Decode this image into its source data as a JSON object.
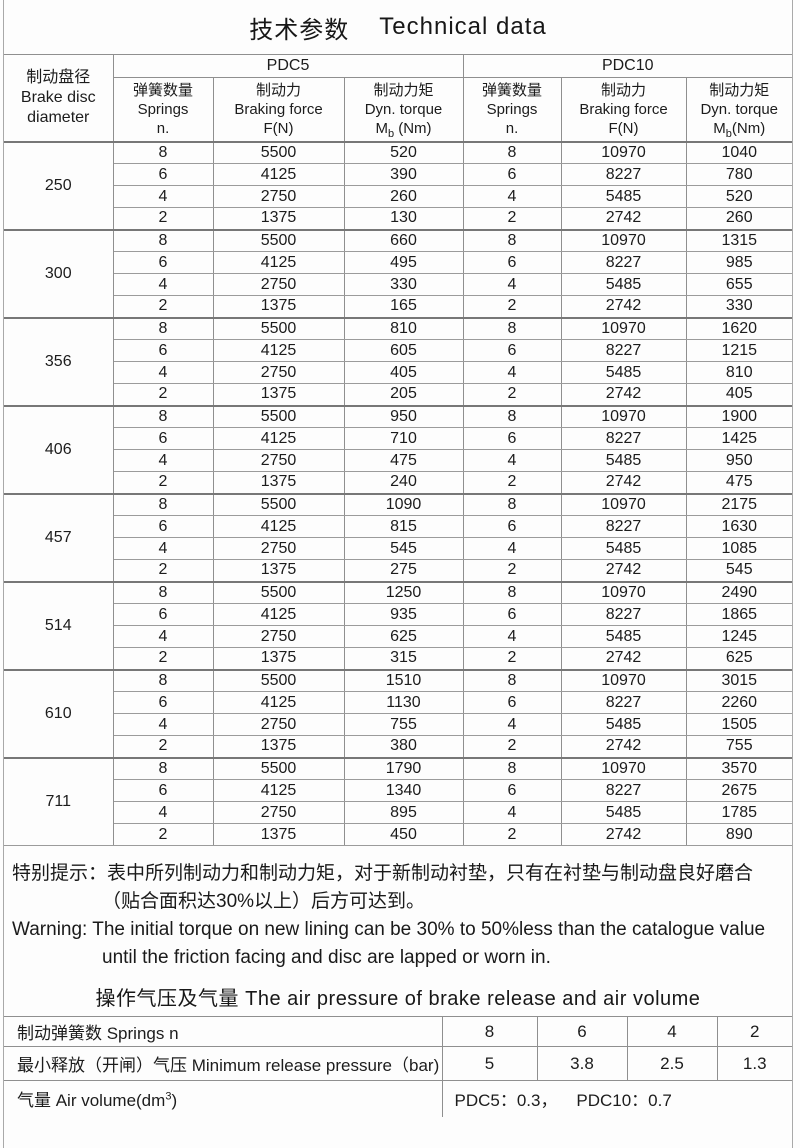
{
  "title": {
    "zh": "技术参数",
    "en": "Technical data"
  },
  "main_table": {
    "disc_header": [
      "制动盘径",
      "Brake disc",
      "diameter"
    ],
    "series": [
      {
        "name": "PDC5",
        "cols": [
          {
            "zh": "弹簧数量",
            "en": "Springs",
            "line3": "n."
          },
          {
            "zh": "制动力",
            "en": "Braking force",
            "line3": "F(N)"
          },
          {
            "zh": "制动力矩",
            "en": "Dyn. torque",
            "sym": "M",
            "sub": "b",
            "unit": " (Nm)"
          }
        ]
      },
      {
        "name": "PDC10",
        "cols": [
          {
            "zh": "弹簧数量",
            "en": "Springs",
            "line3": "n."
          },
          {
            "zh": "制动力",
            "en": "Braking force",
            "line3": "F(N)"
          },
          {
            "zh": "制动力矩",
            "en": "Dyn. torque",
            "sym": "M",
            "sub": "b",
            "unit": "(Nm)"
          }
        ]
      }
    ],
    "groups": [
      {
        "diameter": "250",
        "rows": [
          [
            "8",
            "5500",
            "520",
            "8",
            "10970",
            "1040"
          ],
          [
            "6",
            "4125",
            "390",
            "6",
            "8227",
            "780"
          ],
          [
            "4",
            "2750",
            "260",
            "4",
            "5485",
            "520"
          ],
          [
            "2",
            "1375",
            "130",
            "2",
            "2742",
            "260"
          ]
        ]
      },
      {
        "diameter": "300",
        "rows": [
          [
            "8",
            "5500",
            "660",
            "8",
            "10970",
            "1315"
          ],
          [
            "6",
            "4125",
            "495",
            "6",
            "8227",
            "985"
          ],
          [
            "4",
            "2750",
            "330",
            "4",
            "5485",
            "655"
          ],
          [
            "2",
            "1375",
            "165",
            "2",
            "2742",
            "330"
          ]
        ]
      },
      {
        "diameter": "356",
        "rows": [
          [
            "8",
            "5500",
            "810",
            "8",
            "10970",
            "1620"
          ],
          [
            "6",
            "4125",
            "605",
            "6",
            "8227",
            "1215"
          ],
          [
            "4",
            "2750",
            "405",
            "4",
            "5485",
            "810"
          ],
          [
            "2",
            "1375",
            "205",
            "2",
            "2742",
            "405"
          ]
        ]
      },
      {
        "diameter": "406",
        "rows": [
          [
            "8",
            "5500",
            "950",
            "8",
            "10970",
            "1900"
          ],
          [
            "6",
            "4125",
            "710",
            "6",
            "8227",
            "1425"
          ],
          [
            "4",
            "2750",
            "475",
            "4",
            "5485",
            "950"
          ],
          [
            "2",
            "1375",
            "240",
            "2",
            "2742",
            "475"
          ]
        ]
      },
      {
        "diameter": "457",
        "rows": [
          [
            "8",
            "5500",
            "1090",
            "8",
            "10970",
            "2175"
          ],
          [
            "6",
            "4125",
            "815",
            "6",
            "8227",
            "1630"
          ],
          [
            "4",
            "2750",
            "545",
            "4",
            "5485",
            "1085"
          ],
          [
            "2",
            "1375",
            "275",
            "2",
            "2742",
            "545"
          ]
        ]
      },
      {
        "diameter": "514",
        "rows": [
          [
            "8",
            "5500",
            "1250",
            "8",
            "10970",
            "2490"
          ],
          [
            "6",
            "4125",
            "935",
            "6",
            "8227",
            "1865"
          ],
          [
            "4",
            "2750",
            "625",
            "4",
            "5485",
            "1245"
          ],
          [
            "2",
            "1375",
            "315",
            "2",
            "2742",
            "625"
          ]
        ]
      },
      {
        "diameter": "610",
        "rows": [
          [
            "8",
            "5500",
            "1510",
            "8",
            "10970",
            "3015"
          ],
          [
            "6",
            "4125",
            "1130",
            "6",
            "8227",
            "2260"
          ],
          [
            "4",
            "2750",
            "755",
            "4",
            "5485",
            "1505"
          ],
          [
            "2",
            "1375",
            "380",
            "2",
            "2742",
            "755"
          ]
        ]
      },
      {
        "diameter": "711",
        "rows": [
          [
            "8",
            "5500",
            "1790",
            "8",
            "10970",
            "3570"
          ],
          [
            "6",
            "4125",
            "1340",
            "6",
            "8227",
            "2675"
          ],
          [
            "4",
            "2750",
            "895",
            "4",
            "5485",
            "1785"
          ],
          [
            "2",
            "1375",
            "450",
            "2",
            "2742",
            "890"
          ]
        ]
      }
    ]
  },
  "warning": {
    "zh_line1": "特别提示：表中所列制动力和制动力矩，对于新制动衬垫，只有在衬垫与制动盘良好磨合",
    "zh_line2": "（贴合面积达30%以上）后方可达到。",
    "en_line1": "Warning: The initial torque on new lining can be 30% to 50%less than the catalogue value",
    "en_line2": "until the friction facing and disc are lapped or worn in."
  },
  "air_section": {
    "heading": "操作气压及气量 The air pressure of brake release and air volume",
    "rows": [
      {
        "label": "制动弹簧数 Springs  n",
        "values": [
          "8",
          "6",
          "4",
          "2"
        ]
      },
      {
        "label": "最小释放（开闸）气压 Minimum release pressure（bar)",
        "values": [
          "5",
          "3.8",
          "2.5",
          "1.3"
        ]
      }
    ],
    "air_volume": {
      "prefix": "气量  Air volume(dm",
      "sup": "3",
      "suffix": ")",
      "value": "PDC5：0.3，    PDC10：0.7"
    }
  }
}
